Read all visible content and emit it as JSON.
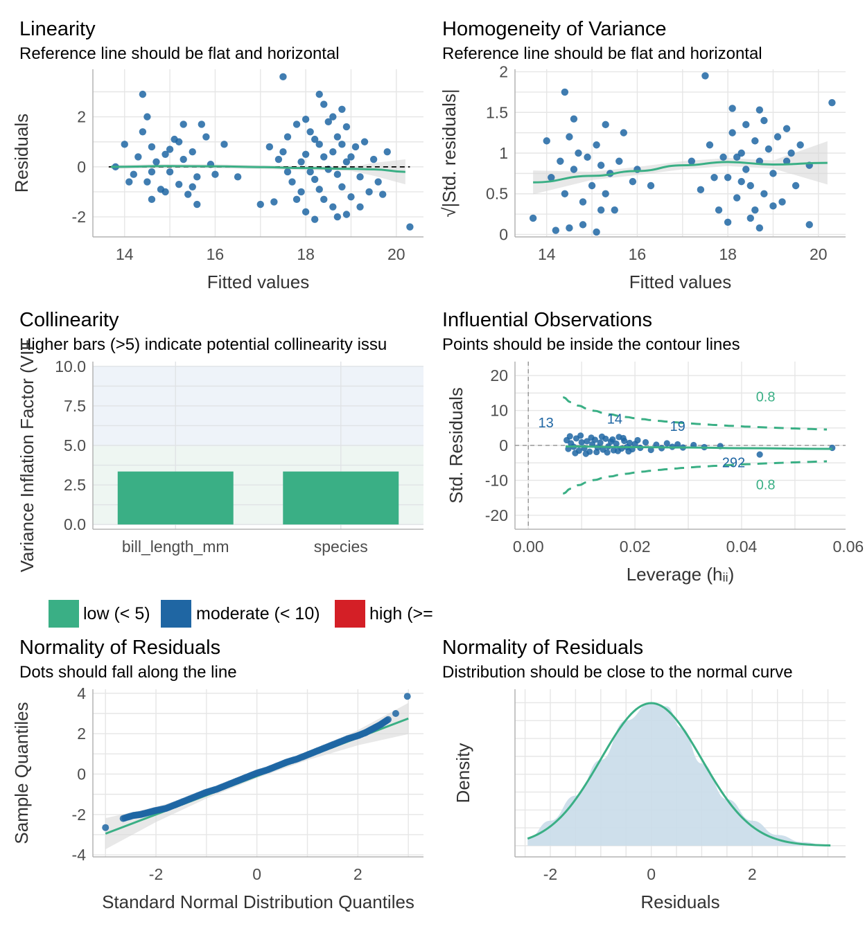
{
  "colors": {
    "point": "#1f66a3",
    "line": "#3aaf85",
    "band": "#d9d9d9",
    "grid": "#e6e6e6",
    "bar_low": "#3aaf85",
    "bar_moderate": "#1f66a3",
    "bar_high": "#d41f26",
    "density_fill": "#c9dbe9"
  },
  "panels": {
    "linearity": {
      "title": "Linearity",
      "subtitle": "Reference line should be flat and horizontal"
    },
    "homogeneity": {
      "title": "Homogeneity of Variance",
      "subtitle": "Reference line should be flat and horizontal"
    },
    "collinearity": {
      "title": "Collinearity",
      "subtitle": "Higher bars (>5) indicate potential collinearity issu"
    },
    "influential": {
      "title": "Influential Observations",
      "subtitle": "Points should be inside the contour lines"
    },
    "qq": {
      "title": "Normality of Residuals",
      "subtitle": "Dots should fall along the line"
    },
    "density": {
      "title": "Normality of Residuals",
      "subtitle": "Distribution should be close to the normal curve"
    }
  },
  "legend": {
    "items": [
      {
        "label": "low (< 5)",
        "color": "#3aaf85"
      },
      {
        "label": "moderate (< 10)",
        "color": "#1f66a3"
      },
      {
        "label": "high (>=",
        "color": "#d41f26"
      }
    ]
  },
  "chart_data": [
    {
      "id": "linearity",
      "type": "scatter",
      "title": "Linearity",
      "subtitle": "Reference line should be flat and horizontal",
      "xlabel": "Fitted values",
      "ylabel": "Residuals",
      "xlim": [
        13.3,
        20.6
      ],
      "ylim": [
        -2.8,
        3.9
      ],
      "xticks": [
        14,
        16,
        18,
        20
      ],
      "yticks": [
        -2,
        0,
        2
      ],
      "reference_line": 0,
      "smooth": {
        "x": [
          13.7,
          15,
          16,
          17,
          18,
          19,
          19.5,
          20.2
        ],
        "y": [
          0.0,
          0.03,
          0.02,
          -0.01,
          -0.05,
          -0.08,
          -0.1,
          -0.2
        ]
      },
      "points": [
        [
          14.4,
          2.9
        ],
        [
          17.5,
          3.6
        ],
        [
          18.3,
          2.9
        ],
        [
          18.8,
          2.3
        ],
        [
          18.4,
          2.5
        ],
        [
          14.5,
          2.0
        ],
        [
          15.3,
          1.7
        ],
        [
          15.7,
          1.7
        ],
        [
          20.3,
          -2.4
        ],
        [
          18.2,
          -2.1
        ],
        [
          18.7,
          -2.0
        ],
        [
          15.6,
          -1.5
        ],
        [
          17.0,
          -1.5
        ],
        [
          14.6,
          -1.3
        ],
        [
          13.8,
          0.0
        ],
        [
          14.0,
          0.9
        ],
        [
          14.2,
          -0.3
        ],
        [
          14.3,
          0.4
        ],
        [
          14.5,
          -0.6
        ],
        [
          14.6,
          0.8
        ],
        [
          14.7,
          0.2
        ],
        [
          14.8,
          -0.9
        ],
        [
          14.9,
          0.5
        ],
        [
          15.0,
          -0.2
        ],
        [
          15.1,
          1.1
        ],
        [
          15.2,
          -0.7
        ],
        [
          15.3,
          0.3
        ],
        [
          15.4,
          -1.1
        ],
        [
          15.5,
          0.6
        ],
        [
          15.6,
          -0.4
        ],
        [
          15.8,
          1.2
        ],
        [
          15.9,
          0.1
        ],
        [
          14.1,
          -0.6
        ],
        [
          14.4,
          1.4
        ],
        [
          15.0,
          0.7
        ],
        [
          15.2,
          1.0
        ],
        [
          14.6,
          -0.2
        ],
        [
          14.9,
          -1.0
        ],
        [
          15.5,
          -0.8
        ],
        [
          16.0,
          -0.3
        ],
        [
          16.2,
          0.9
        ],
        [
          16.5,
          -0.4
        ],
        [
          17.2,
          0.8
        ],
        [
          17.3,
          -1.4
        ],
        [
          17.4,
          0.3
        ],
        [
          17.6,
          1.2
        ],
        [
          17.7,
          -0.6
        ],
        [
          17.8,
          1.7
        ],
        [
          17.9,
          -1.0
        ],
        [
          18.0,
          0.5
        ],
        [
          18.0,
          -1.8
        ],
        [
          18.1,
          1.4
        ],
        [
          18.2,
          -0.5
        ],
        [
          18.3,
          0.9
        ],
        [
          18.4,
          -1.3
        ],
        [
          18.5,
          1.8
        ],
        [
          18.5,
          -0.1
        ],
        [
          18.6,
          0.6
        ],
        [
          18.6,
          -1.6
        ],
        [
          18.7,
          1.2
        ],
        [
          18.8,
          -0.8
        ],
        [
          18.9,
          0.2
        ],
        [
          18.9,
          1.6
        ],
        [
          19.0,
          -1.2
        ],
        [
          19.1,
          0.8
        ],
        [
          19.2,
          -0.4
        ],
        [
          19.3,
          1.0
        ],
        [
          19.4,
          -1.0
        ],
        [
          19.5,
          0.3
        ],
        [
          19.6,
          -0.6
        ],
        [
          19.8,
          0.6
        ],
        [
          17.9,
          0.2
        ],
        [
          18.1,
          -0.2
        ],
        [
          18.3,
          -0.9
        ],
        [
          18.4,
          0.4
        ],
        [
          18.7,
          -0.3
        ],
        [
          18.8,
          0.9
        ],
        [
          19.0,
          0.4
        ],
        [
          18.2,
          1.1
        ],
        [
          17.6,
          -0.2
        ],
        [
          17.8,
          -1.3
        ],
        [
          18.6,
          2.0
        ],
        [
          19.2,
          -1.6
        ],
        [
          18.0,
          1.9
        ],
        [
          18.9,
          -1.9
        ],
        [
          19.7,
          -1.1
        ],
        [
          17.5,
          0.6
        ]
      ]
    },
    {
      "id": "homogeneity",
      "type": "scatter",
      "title": "Homogeneity of Variance",
      "subtitle": "Reference line should be flat and horizontal",
      "xlabel": "Fitted values",
      "ylabel": "√|Std. residuals|",
      "xlim": [
        13.3,
        20.6
      ],
      "ylim": [
        -0.03,
        2.03
      ],
      "xticks": [
        14,
        16,
        18,
        20
      ],
      "yticks": [
        0.0,
        0.5,
        1.0,
        1.5,
        2.0
      ],
      "smooth": {
        "x": [
          13.7,
          15,
          16,
          17,
          18,
          19,
          20.2
        ],
        "y": [
          0.64,
          0.72,
          0.78,
          0.85,
          0.89,
          0.86,
          0.88
        ]
      },
      "points": [
        [
          14.4,
          1.75
        ],
        [
          17.5,
          1.95
        ],
        [
          18.1,
          1.55
        ],
        [
          18.7,
          1.53
        ],
        [
          20.3,
          1.62
        ],
        [
          13.7,
          0.2
        ],
        [
          14.2,
          0.05
        ],
        [
          14.5,
          0.08
        ],
        [
          15.1,
          0.03
        ],
        [
          14.8,
          0.12
        ],
        [
          15.3,
          1.35
        ],
        [
          14.6,
          1.42
        ],
        [
          15.7,
          1.25
        ],
        [
          18.0,
          0.15
        ],
        [
          18.7,
          0.08
        ],
        [
          19.8,
          0.12
        ],
        [
          19.3,
          1.3
        ],
        [
          16.3,
          0.6
        ],
        [
          14.1,
          0.7
        ],
        [
          14.3,
          0.9
        ],
        [
          14.4,
          0.5
        ],
        [
          14.6,
          0.8
        ],
        [
          14.7,
          1.0
        ],
        [
          14.8,
          0.4
        ],
        [
          14.9,
          0.95
        ],
        [
          15.0,
          0.6
        ],
        [
          15.1,
          1.1
        ],
        [
          15.2,
          0.85
        ],
        [
          15.3,
          0.5
        ],
        [
          15.4,
          0.75
        ],
        [
          15.5,
          0.3
        ],
        [
          15.6,
          0.9
        ],
        [
          15.9,
          0.65
        ],
        [
          14.0,
          1.15
        ],
        [
          14.5,
          1.2
        ],
        [
          15.2,
          0.3
        ],
        [
          16.0,
          0.8
        ],
        [
          17.2,
          0.9
        ],
        [
          17.4,
          0.55
        ],
        [
          17.6,
          1.1
        ],
        [
          17.8,
          0.3
        ],
        [
          17.9,
          0.95
        ],
        [
          18.0,
          0.7
        ],
        [
          18.1,
          1.25
        ],
        [
          18.2,
          0.45
        ],
        [
          18.3,
          1.0
        ],
        [
          18.4,
          0.8
        ],
        [
          18.4,
          1.35
        ],
        [
          18.5,
          0.6
        ],
        [
          18.6,
          1.15
        ],
        [
          18.6,
          0.3
        ],
        [
          18.7,
          0.9
        ],
        [
          18.8,
          1.4
        ],
        [
          18.8,
          0.5
        ],
        [
          18.9,
          1.05
        ],
        [
          19.0,
          0.75
        ],
        [
          19.1,
          1.2
        ],
        [
          19.2,
          0.4
        ],
        [
          19.3,
          0.9
        ],
        [
          19.4,
          1.0
        ],
        [
          19.5,
          0.6
        ],
        [
          19.6,
          1.1
        ],
        [
          19.8,
          0.85
        ],
        [
          17.7,
          0.7
        ],
        [
          18.2,
          0.95
        ],
        [
          18.5,
          0.2
        ],
        [
          19.0,
          0.35
        ],
        [
          18.3,
          0.65
        ]
      ]
    },
    {
      "id": "collinearity",
      "type": "bar",
      "title": "Collinearity",
      "subtitle": "Higher bars (>5) indicate potential collinearity issu",
      "ylabel": "Variance Inflation Factor (VIF",
      "categories": [
        "bill_length_mm",
        "species"
      ],
      "values": [
        3.35,
        3.35
      ],
      "bar_class": [
        "low",
        "low"
      ],
      "ylim": [
        -0.3,
        10.3
      ],
      "yticks": [
        "0.0",
        "2.5",
        "5.0",
        "7.5",
        "10.0"
      ],
      "shaded_bands": [
        {
          "from": 0,
          "to": 5,
          "color": "#eef6f2"
        },
        {
          "from": 5,
          "to": 10,
          "color": "#eef3f9"
        }
      ]
    },
    {
      "id": "influential",
      "type": "scatter",
      "title": "Influential Observations",
      "subtitle": "Points should be inside the contour lines",
      "xlabel": "Leverage (hᵢᵢ)",
      "ylabel": "Std. Residuals",
      "xlim": [
        -0.0025,
        0.0595
      ],
      "ylim": [
        -24,
        24
      ],
      "xticks": [
        "0.00",
        "0.02",
        "0.04",
        "0.06"
      ],
      "yticks": [
        -20,
        -10,
        0,
        10,
        20
      ],
      "contour_label": "0.8",
      "point_labels": [
        {
          "text": "13",
          "x": 0.0033,
          "y": 5.2
        },
        {
          "text": "14",
          "x": 0.0162,
          "y": 6.2
        },
        {
          "text": "19",
          "x": 0.028,
          "y": 4.2
        },
        {
          "text": "292",
          "x": 0.0385,
          "y": -6.2
        }
      ],
      "points": [
        [
          0.0072,
          1.5
        ],
        [
          0.0075,
          -1.0
        ],
        [
          0.008,
          0.6
        ],
        [
          0.0085,
          -0.4
        ],
        [
          0.009,
          2.0
        ],
        [
          0.0095,
          -1.5
        ],
        [
          0.01,
          0.9
        ],
        [
          0.0105,
          -0.8
        ],
        [
          0.011,
          1.2
        ],
        [
          0.0115,
          -1.8
        ],
        [
          0.012,
          0.3
        ],
        [
          0.0125,
          1.6
        ],
        [
          0.013,
          -0.6
        ],
        [
          0.0135,
          0.8
        ],
        [
          0.014,
          -1.2
        ],
        [
          0.0145,
          1.9
        ],
        [
          0.015,
          -0.3
        ],
        [
          0.0155,
          1.1
        ],
        [
          0.016,
          -1.4
        ],
        [
          0.0165,
          0.5
        ],
        [
          0.017,
          2.4
        ],
        [
          0.0175,
          -0.9
        ],
        [
          0.018,
          1.3
        ],
        [
          0.0185,
          -0.5
        ],
        [
          0.019,
          0.7
        ],
        [
          0.0195,
          -1.1
        ],
        [
          0.02,
          0.4
        ],
        [
          0.0205,
          1.5
        ],
        [
          0.021,
          -0.7
        ],
        [
          0.022,
          0.9
        ],
        [
          0.023,
          -1.3
        ],
        [
          0.024,
          0.2
        ],
        [
          0.025,
          -0.8
        ],
        [
          0.026,
          0.6
        ],
        [
          0.027,
          -0.4
        ],
        [
          0.028,
          0.3
        ],
        [
          0.029,
          -0.6
        ],
        [
          0.031,
          0.1
        ],
        [
          0.033,
          -0.5
        ],
        [
          0.036,
          -0.2
        ],
        [
          0.0434,
          -2.6
        ],
        [
          0.057,
          -0.7
        ],
        [
          0.0078,
          2.6
        ],
        [
          0.0088,
          -2.2
        ],
        [
          0.0098,
          2.8
        ],
        [
          0.0108,
          -2.4
        ],
        [
          0.0118,
          2.2
        ],
        [
          0.0128,
          -1.9
        ],
        [
          0.0138,
          2.5
        ],
        [
          0.0148,
          -2.0
        ],
        [
          0.0158,
          1.7
        ],
        [
          0.0168,
          -1.6
        ],
        [
          0.0178,
          2.1
        ],
        [
          0.0188,
          -1.7
        ]
      ],
      "smooth": {
        "x": [
          0.007,
          0.02,
          0.03,
          0.04,
          0.057
        ],
        "y": [
          -0.3,
          -0.5,
          -0.6,
          -0.8,
          -1.0
        ]
      }
    },
    {
      "id": "qq",
      "type": "scatter",
      "title": "Normality of Residuals",
      "subtitle": "Dots should fall along the line",
      "xlabel": "Standard Normal Distribution Quantiles",
      "ylabel": "Sample Quantiles",
      "xlim": [
        -3.25,
        3.3
      ],
      "ylim": [
        -4.1,
        4.2
      ],
      "xticks": [
        -2,
        0,
        2
      ],
      "yticks": [
        -4,
        -2,
        0,
        2,
        4
      ],
      "reference_line": {
        "x": [
          -3,
          3
        ],
        "y": [
          -2.95,
          2.75
        ]
      },
      "points": [
        [
          -3.0,
          -2.65
        ],
        [
          -2.65,
          -2.2
        ],
        [
          -2.45,
          -2.05
        ],
        [
          -2.3,
          -2.0
        ],
        [
          -2.15,
          -1.9
        ],
        [
          -2.0,
          -1.8
        ],
        [
          -1.8,
          -1.7
        ],
        [
          -1.6,
          -1.5
        ],
        [
          -1.4,
          -1.3
        ],
        [
          -1.2,
          -1.1
        ],
        [
          -1.0,
          -0.9
        ],
        [
          -0.8,
          -0.75
        ],
        [
          -0.6,
          -0.55
        ],
        [
          -0.4,
          -0.35
        ],
        [
          -0.2,
          -0.15
        ],
        [
          0.0,
          0.05
        ],
        [
          0.2,
          0.2
        ],
        [
          0.4,
          0.4
        ],
        [
          0.6,
          0.6
        ],
        [
          0.8,
          0.75
        ],
        [
          1.0,
          0.95
        ],
        [
          1.2,
          1.15
        ],
        [
          1.4,
          1.35
        ],
        [
          1.6,
          1.55
        ],
        [
          1.8,
          1.75
        ],
        [
          2.0,
          1.9
        ],
        [
          2.15,
          2.05
        ],
        [
          2.3,
          2.25
        ],
        [
          2.45,
          2.45
        ],
        [
          2.6,
          2.7
        ],
        [
          2.75,
          3.0
        ],
        [
          2.98,
          3.85
        ]
      ]
    },
    {
      "id": "density",
      "type": "area",
      "title": "Normality of Residuals",
      "subtitle": "Distribution should be close to the normal curve",
      "xlabel": "Residuals",
      "ylabel": "Density",
      "xlim": [
        -2.7,
        3.85
      ],
      "xticks": [
        -2,
        0,
        2
      ],
      "normal_curve": {
        "mean": 0,
        "sd": 1.0
      },
      "empirical_density": {
        "x": [
          -2.45,
          -2,
          -1.5,
          -1,
          -0.5,
          0,
          0.3,
          0.6,
          1,
          1.5,
          2,
          2.5,
          3,
          3.5
        ],
        "y": [
          0.02,
          0.07,
          0.14,
          0.24,
          0.35,
          0.4,
          0.39,
          0.33,
          0.23,
          0.13,
          0.07,
          0.03,
          0.01,
          0.0
        ]
      }
    }
  ]
}
